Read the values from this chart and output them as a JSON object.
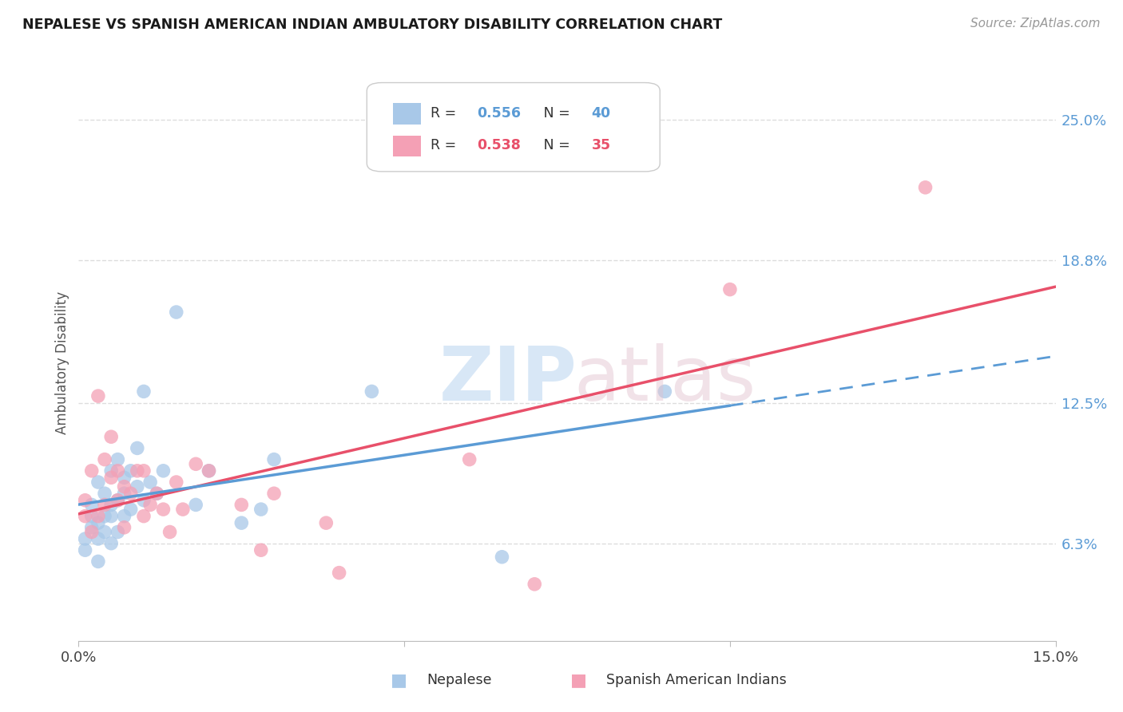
{
  "title": "NEPALESE VS SPANISH AMERICAN INDIAN AMBULATORY DISABILITY CORRELATION CHART",
  "source": "Source: ZipAtlas.com",
  "ylabel": "Ambulatory Disability",
  "ytick_labels": [
    "6.3%",
    "12.5%",
    "18.8%",
    "25.0%"
  ],
  "ytick_values": [
    0.063,
    0.125,
    0.188,
    0.25
  ],
  "xlim": [
    0.0,
    0.15
  ],
  "ylim": [
    0.02,
    0.265
  ],
  "legend_blue_r": "0.556",
  "legend_blue_n": "40",
  "legend_pink_r": "0.538",
  "legend_pink_n": "35",
  "blue_color": "#A8C8E8",
  "pink_color": "#F4A0B5",
  "blue_line_color": "#5B9BD5",
  "pink_line_color": "#E8506A",
  "nepalese_x": [
    0.001,
    0.001,
    0.002,
    0.002,
    0.002,
    0.003,
    0.003,
    0.003,
    0.003,
    0.004,
    0.004,
    0.004,
    0.005,
    0.005,
    0.005,
    0.005,
    0.006,
    0.006,
    0.006,
    0.007,
    0.007,
    0.007,
    0.008,
    0.008,
    0.009,
    0.009,
    0.01,
    0.01,
    0.011,
    0.012,
    0.013,
    0.015,
    0.018,
    0.02,
    0.025,
    0.028,
    0.03,
    0.045,
    0.065,
    0.09
  ],
  "nepalese_y": [
    0.065,
    0.06,
    0.07,
    0.075,
    0.08,
    0.055,
    0.065,
    0.072,
    0.09,
    0.068,
    0.075,
    0.085,
    0.063,
    0.075,
    0.08,
    0.095,
    0.068,
    0.082,
    0.1,
    0.075,
    0.085,
    0.092,
    0.095,
    0.078,
    0.088,
    0.105,
    0.082,
    0.13,
    0.09,
    0.085,
    0.095,
    0.165,
    0.08,
    0.095,
    0.072,
    0.078,
    0.1,
    0.13,
    0.057,
    0.13
  ],
  "spanish_x": [
    0.001,
    0.001,
    0.002,
    0.002,
    0.003,
    0.003,
    0.004,
    0.004,
    0.005,
    0.005,
    0.006,
    0.006,
    0.007,
    0.007,
    0.008,
    0.009,
    0.01,
    0.01,
    0.011,
    0.012,
    0.013,
    0.014,
    0.015,
    0.016,
    0.018,
    0.02,
    0.025,
    0.028,
    0.03,
    0.038,
    0.04,
    0.06,
    0.07,
    0.1,
    0.13
  ],
  "spanish_y": [
    0.075,
    0.082,
    0.095,
    0.068,
    0.128,
    0.075,
    0.1,
    0.08,
    0.11,
    0.092,
    0.082,
    0.095,
    0.07,
    0.088,
    0.085,
    0.095,
    0.075,
    0.095,
    0.08,
    0.085,
    0.078,
    0.068,
    0.09,
    0.078,
    0.098,
    0.095,
    0.08,
    0.06,
    0.085,
    0.072,
    0.05,
    0.1,
    0.045,
    0.175,
    0.22
  ],
  "background_color": "#FFFFFF",
  "grid_color": "#DDDDDD"
}
